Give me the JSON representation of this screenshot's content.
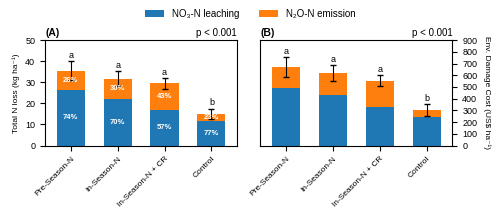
{
  "chart_data": [
    {
      "type": "bar",
      "stacked": true,
      "title": "(A)",
      "annotations": [
        "p < 0.001"
      ],
      "y_label": "Total N loss (kg ha⁻¹)",
      "categories": [
        "Pre-Season-N",
        "In-Season-N",
        "In-Season-N + CR",
        "Control"
      ],
      "series": [
        {
          "name": "NO₃-N leaching",
          "values": [
            26.3,
            22.2,
            16.8,
            11.55
          ],
          "share_labels": [
            "74%",
            "70%",
            "57%",
            "77%"
          ]
        },
        {
          "name": "N₂O-N emission",
          "values": [
            9.2,
            9.5,
            12.7,
            3.45
          ],
          "share_labels": [
            "26%",
            "30%",
            "43%",
            "23%"
          ]
        }
      ],
      "error_bars": [
        4.5,
        3.5,
        2.5,
        2.5
      ],
      "sig_labels": [
        "a",
        "a",
        "a",
        "b"
      ],
      "ylim": [
        0,
        50
      ],
      "yticks": [
        0,
        10,
        20,
        30,
        40,
        50
      ],
      "legend": "upper center"
    },
    {
      "type": "bar",
      "stacked": true,
      "title": "(B)",
      "annotations": [
        "p < 0.001"
      ],
      "y_label": "Env. Damage Cost (US$ ha⁻¹)",
      "categories": [
        "Pre-Season-N",
        "In-Season-N",
        "In-Season-N + CR",
        "Control"
      ],
      "series": [
        {
          "name": "NO₃-N leaching",
          "values": [
            495,
            435,
            330,
            240
          ]
        },
        {
          "name": "N₂O-N emission",
          "values": [
            175,
            185,
            225,
            65
          ]
        }
      ],
      "error_bars": [
        85,
        65,
        45,
        50
      ],
      "sig_labels": [
        "a",
        "a",
        "a",
        "b"
      ],
      "ylim": [
        0,
        900
      ],
      "yticks": [
        0,
        100,
        200,
        300,
        400,
        500,
        600,
        700,
        800,
        900
      ]
    }
  ]
}
